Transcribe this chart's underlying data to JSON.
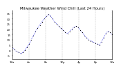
{
  "title": "Milwaukee Weather Wind Chill (Last 24 Hours)",
  "background_color": "#ffffff",
  "plot_bg_color": "#ffffff",
  "grid_color": "#bbbbbb",
  "line_color": "#0000ee",
  "marker_color": "#000000",
  "title_fontsize": 3.8,
  "tick_fontsize": 2.8,
  "ylim": [
    -8,
    38
  ],
  "ytick_positions": [
    -5,
    0,
    5,
    10,
    15,
    20,
    25,
    30,
    35
  ],
  "ytick_labels": [
    "-5",
    "0",
    "5",
    "10",
    "15",
    "20",
    "25",
    "30",
    "35"
  ],
  "y_values": [
    3,
    1,
    -1,
    -2,
    -3,
    -2,
    0,
    3,
    6,
    10,
    14,
    18,
    21,
    24,
    27,
    30,
    32,
    34,
    33,
    30,
    27,
    25,
    23,
    21,
    19,
    17,
    16,
    18,
    20,
    22,
    23,
    22,
    19,
    17,
    14,
    12,
    10,
    9,
    8,
    7,
    6,
    5,
    8,
    12,
    16,
    18,
    17,
    15
  ],
  "n_points": 48,
  "x_hours": 24,
  "vgrid_positions": [
    0,
    4,
    8,
    12,
    16,
    20,
    24
  ],
  "xtick_positions": [
    0,
    4,
    8,
    12,
    16,
    20,
    24
  ],
  "xtick_labels": [
    "12a",
    "4a",
    "8a",
    "12p",
    "4p",
    "8p",
    "12a"
  ]
}
